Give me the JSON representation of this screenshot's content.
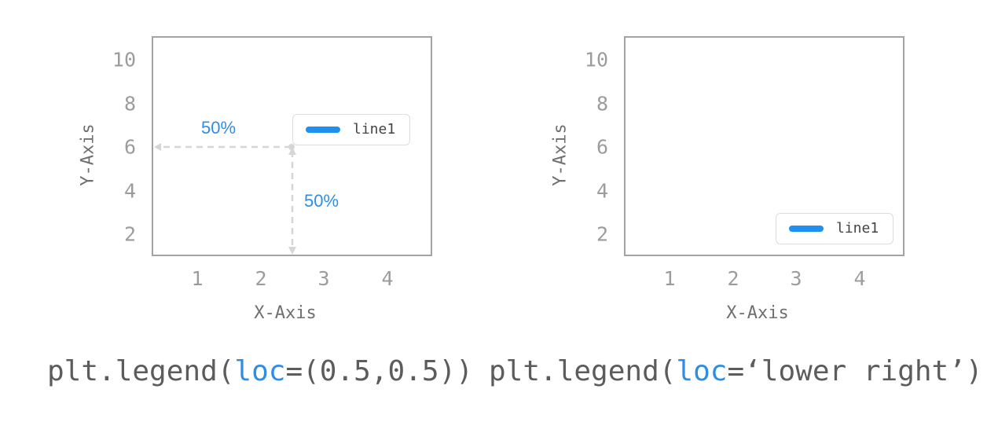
{
  "panels": [
    {
      "ylabel": "Y-Axis",
      "xlabel": "X-Axis",
      "yticks": [
        "2",
        "4",
        "6",
        "8",
        "10"
      ],
      "xticks": [
        "1",
        "2",
        "3",
        "4"
      ],
      "legend": {
        "label": "line1",
        "color": "#1e90f0"
      },
      "annotations": {
        "horizontal": "50%",
        "vertical": "50%"
      },
      "code": {
        "prefix": "plt.legend(",
        "keyword": "loc",
        "suffix": "=(0.5,0.5))"
      }
    },
    {
      "ylabel": "Y-Axis",
      "xlabel": "X-Axis",
      "yticks": [
        "2",
        "4",
        "6",
        "8",
        "10"
      ],
      "xticks": [
        "1",
        "2",
        "3",
        "4"
      ],
      "legend": {
        "label": "line1",
        "color": "#1e90f0"
      },
      "code": {
        "prefix": "plt.legend(",
        "keyword": "loc",
        "suffix": "=‘lower right’)"
      }
    }
  ],
  "colors": {
    "accent": "#2e8ee6",
    "axis": "#a3a3a3",
    "tick": "#9c9c9c",
    "guide": "#d6d6d6"
  }
}
